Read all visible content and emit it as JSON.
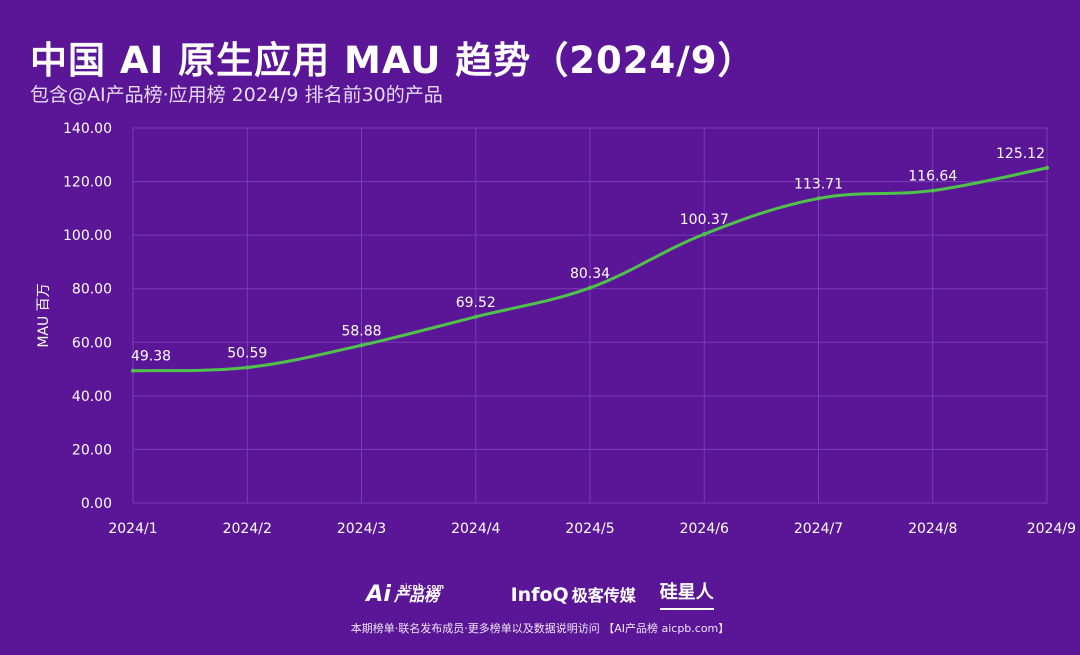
{
  "header": {
    "title": "中国 AI 原生应用 MAU 趋势（2024/9）",
    "subtitle": "包含@AI产品榜·应用榜 2024/9 排名前30的产品"
  },
  "chart_data": {
    "type": "line",
    "title": "中国 AI 原生应用 MAU 趋势（2024/9）",
    "subtitle": "包含@AI产品榜·应用榜 2024/9 排名前30的产品",
    "ylabel": "MAU 百万",
    "xlabel": "",
    "categories": [
      "2024/1",
      "2024/2",
      "2024/3",
      "2024/4",
      "2024/5",
      "2024/6",
      "2024/7",
      "2024/8",
      "2024/9"
    ],
    "values": [
      49.38,
      50.59,
      58.88,
      69.52,
      80.34,
      100.37,
      113.71,
      116.64,
      125.12
    ],
    "value_labels": [
      "49.38",
      "50.59",
      "58.88",
      "69.52",
      "80.34",
      "100.37",
      "113.71",
      "116.64",
      "125.12"
    ],
    "ylim": [
      0,
      140
    ],
    "yticks": [
      "0.00",
      "20.00",
      "40.00",
      "60.00",
      "80.00",
      "100.00",
      "120.00",
      "140.00"
    ],
    "grid": true,
    "line_color": "#4fc24a",
    "grid_color": "#7a3cb8"
  },
  "footer": {
    "logo_ai_mark": "Ai",
    "logo_ai_text": "产品榜",
    "logo_ai_sub": "aicpb.com",
    "logo_infoq": "InfoQ",
    "logo_geek": "极客传媒",
    "logo_guixing": "硅星人",
    "note": "本期榜单·联名发布成员·更多榜单以及数据说明访问 【AI产品榜 aicpb.com】"
  },
  "colors": {
    "background": "#5b1597",
    "line": "#4fc24a",
    "text": "#ffffff"
  }
}
